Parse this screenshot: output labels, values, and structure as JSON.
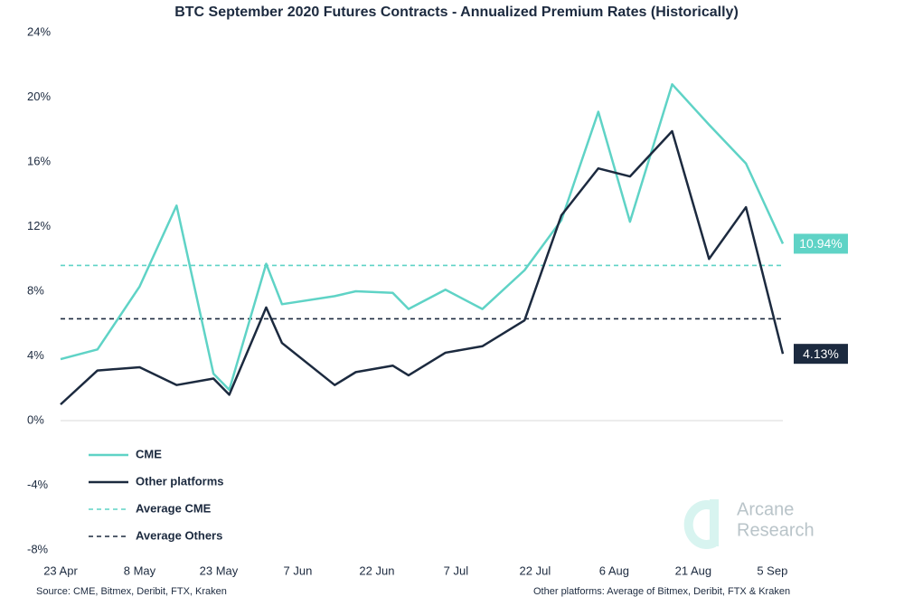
{
  "chart_data": {
    "type": "line",
    "title": "BTC September 2020 Futures Contracts - Annualized Premium Rates (Historically)",
    "x": [
      "23 Apr",
      "30 Apr",
      "8 May",
      "15 May",
      "22 May",
      "25 May",
      "1 Jun",
      "4 Jun",
      "14 Jun",
      "18 Jun",
      "25 Jun",
      "28 Jun",
      "5 Jul",
      "12 Jul",
      "20 Jul",
      "27 Jul",
      "3 Aug",
      "9 Aug",
      "17 Aug",
      "24 Aug",
      "31 Aug",
      "7 Sep"
    ],
    "series": [
      {
        "name": "CME",
        "color": "#5fd3c6",
        "values": [
          3.8,
          4.4,
          8.3,
          13.3,
          2.9,
          1.9,
          9.7,
          7.2,
          7.7,
          8.0,
          7.9,
          6.9,
          8.1,
          6.9,
          9.3,
          12.4,
          19.1,
          12.3,
          20.8,
          18.3,
          15.9,
          10.94
        ],
        "value_labels": [
          null,
          null,
          null,
          null,
          null,
          null,
          null,
          null,
          null,
          null,
          null,
          null,
          null,
          null,
          null,
          null,
          null,
          null,
          null,
          null,
          null,
          "10.94%"
        ]
      },
      {
        "name": "Other platforms",
        "color": "#1c2a3f",
        "values": [
          1.0,
          3.1,
          3.3,
          2.2,
          2.6,
          1.6,
          7.0,
          4.8,
          2.2,
          3.0,
          3.4,
          2.8,
          4.2,
          4.6,
          6.2,
          12.7,
          15.6,
          15.1,
          17.9,
          10.0,
          13.2,
          4.13
        ],
        "value_labels": [
          null,
          null,
          null,
          null,
          null,
          null,
          null,
          null,
          null,
          null,
          null,
          null,
          null,
          null,
          null,
          null,
          null,
          null,
          null,
          null,
          null,
          "4.13%"
        ]
      }
    ],
    "reference_lines": [
      {
        "name": "Average CME",
        "value": 9.6,
        "color": "#5fd3c6",
        "dashed": true
      },
      {
        "name": "Average Others",
        "value": 6.3,
        "color": "#1c2a3f",
        "dashed": true
      }
    ],
    "xlim": [
      "23 Apr",
      "7 Sep"
    ],
    "xticks": [
      "23 Apr",
      "8 May",
      "23 May",
      "7 Jun",
      "22 Jun",
      "7 Jul",
      "22 Jul",
      "6 Aug",
      "21 Aug",
      "5 Sep"
    ],
    "ylim": [
      -8,
      24
    ],
    "yticks": [
      {
        "value": -8,
        "label": "-8%"
      },
      {
        "value": -4,
        "label": "-4%"
      },
      {
        "value": 0,
        "label": "0%"
      },
      {
        "value": 4,
        "label": "4%"
      },
      {
        "value": 8,
        "label": "8%"
      },
      {
        "value": 12,
        "label": "12%"
      },
      {
        "value": 16,
        "label": "16%"
      },
      {
        "value": 20,
        "label": "20%"
      },
      {
        "value": 24,
        "label": "24%"
      }
    ],
    "legend": "bottom-left",
    "logo": [
      "Arcane",
      "Research"
    ],
    "footnotes": [
      "Source: CME, Bitmex, Deribit, FTX, Kraken",
      "Other platforms: Average of Bitmex, Deribit, FTX & Kraken"
    ]
  }
}
